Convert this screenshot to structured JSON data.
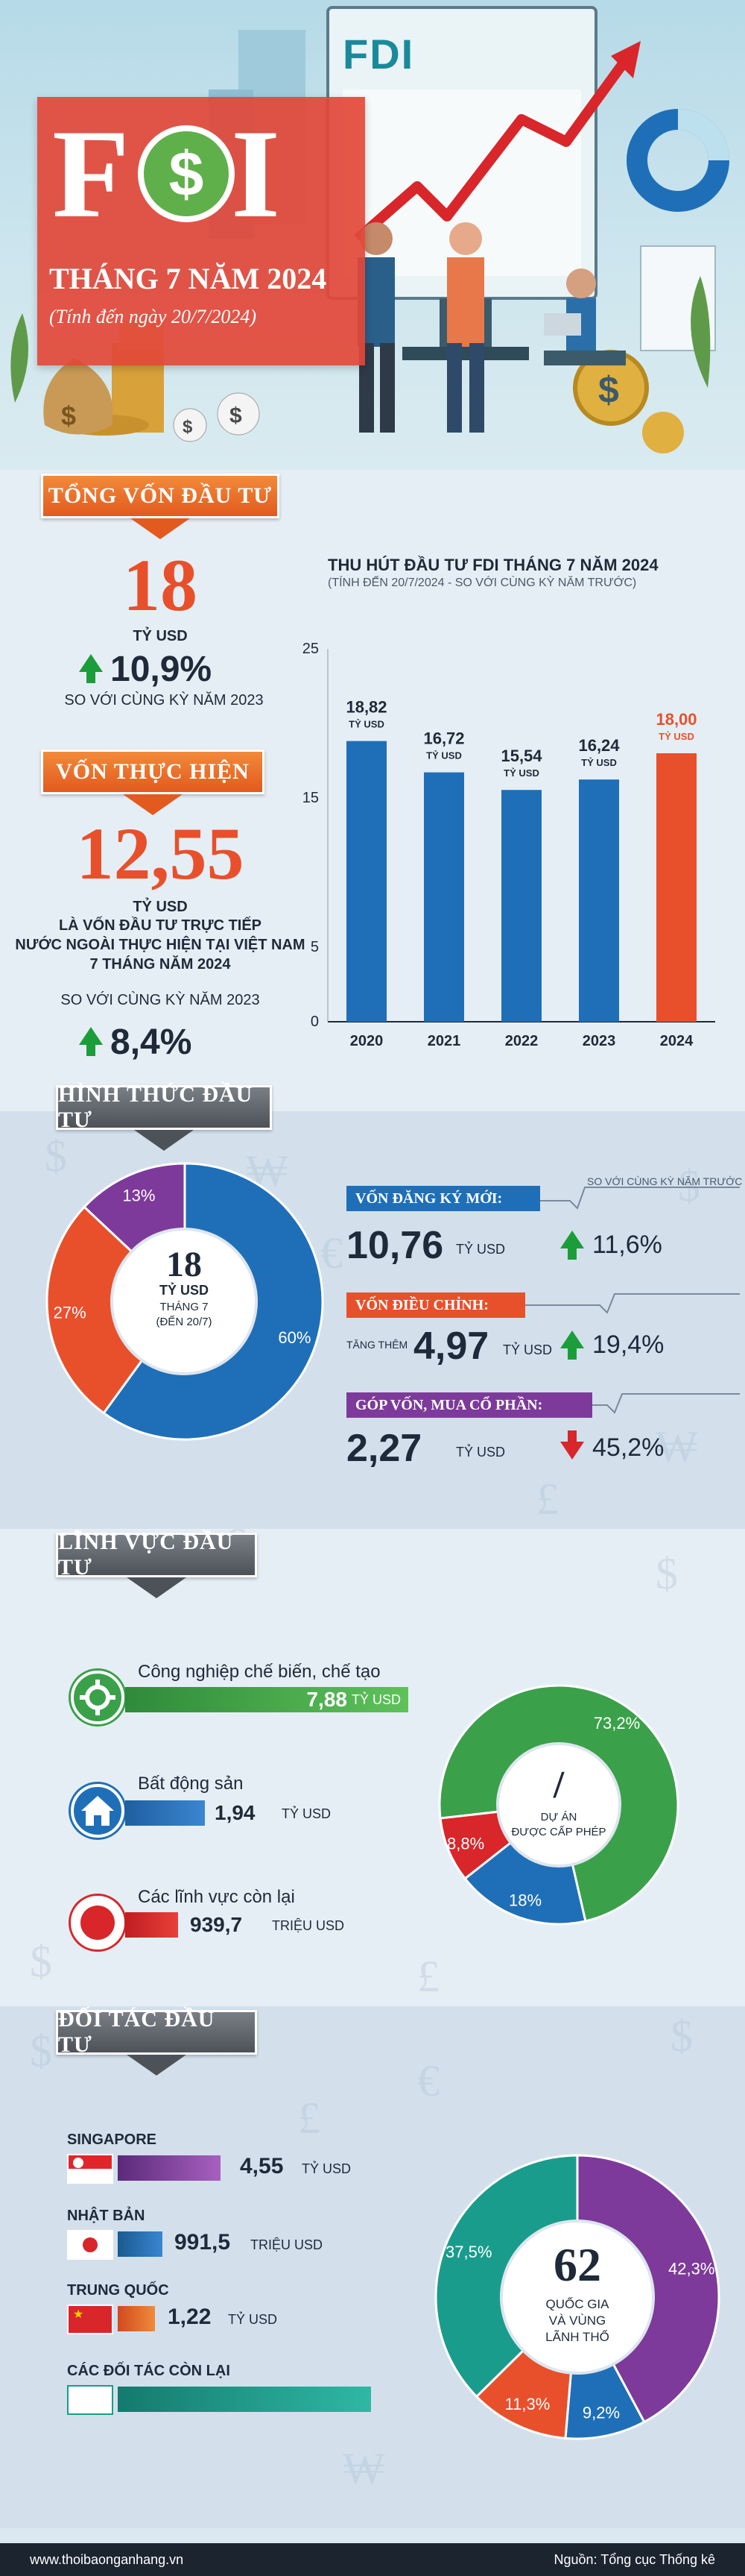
{
  "header": {
    "screen_label": "FDI",
    "logo_word": "FDI",
    "subtitle": "THÁNG 7 NĂM 2024",
    "date_note": "(Tính đến ngày 20/7/2024)"
  },
  "total_capital": {
    "banner": "TỔNG VỐN ĐẦU TƯ",
    "value": "18",
    "unit": "TỶ USD",
    "growth": "10,9%",
    "compare": "SO VỚI CÙNG KỲ NĂM 2023"
  },
  "disbursed": {
    "banner": "VỐN THỰC HIỆN",
    "value": "12,55",
    "unit": "TỶ USD",
    "desc_1": "LÀ VỐN ĐẦU TƯ TRỰC TIẾP",
    "desc_2": "NƯỚC NGOÀI THỰC HIỆN TẠI VIỆT NAM",
    "desc_3": "7 THÁNG NĂM 2024",
    "compare": "SO VỚI CÙNG KỲ NĂM 2023",
    "growth": "8,4%"
  },
  "chart_data": [
    {
      "type": "bar",
      "title": "THU HÚT ĐẦU TƯ FDI THÁNG 7 NĂM 2024",
      "subtitle": "(TÍNH ĐẾN 20/7/2024 - SO VỚI CÙNG KỲ NĂM TRƯỚC)",
      "categories": [
        "2020",
        "2021",
        "2022",
        "2023",
        "2024"
      ],
      "values": [
        18.82,
        16.72,
        15.54,
        16.24,
        18.0
      ],
      "value_labels": [
        "18,82",
        "16,72",
        "15,54",
        "16,24",
        "18,00"
      ],
      "unit_label": "TỶ USD",
      "yticks": [
        "0",
        "5",
        "15",
        "25"
      ],
      "ytick_values": [
        0,
        5,
        15,
        25
      ],
      "ylim": [
        0,
        25
      ],
      "colors": [
        "#1f6fb8",
        "#1f6fb8",
        "#1f6fb8",
        "#1f6fb8",
        "#e8502b"
      ]
    },
    {
      "type": "pie",
      "title": "HÌNH THỨC ĐẦU TƯ",
      "center_value": "18",
      "center_unit": "TỶ USD",
      "center_note_1": "THÁNG 7",
      "center_note_2": "(ĐẾN 20/7)",
      "values": [
        60,
        27,
        13
      ],
      "labels": [
        "60%",
        "27%",
        "13%"
      ],
      "colors": [
        "#1f6fb8",
        "#e8502b",
        "#7d3a9a"
      ]
    },
    {
      "type": "pie",
      "title": "LĨNH VỰC ĐẦU TƯ",
      "center_value": "/",
      "center_note_1": "DỰ ÁN",
      "center_note_2": "ĐƯỢC CẤP PHÉP",
      "values": [
        73.2,
        18,
        8.8
      ],
      "labels": [
        "73,2%",
        "18%",
        "8,8%"
      ],
      "colors": [
        "#3aa14a",
        "#1f6fb8",
        "#d8262a"
      ]
    },
    {
      "type": "pie",
      "title": "ĐỐI TÁC ĐẦU TƯ",
      "center_value": "62",
      "center_note_1": "QUỐC GIA",
      "center_note_2": "VÀ VÙNG",
      "center_note_3": "LÃNH THỔ",
      "values": [
        42.3,
        9.2,
        11.3,
        37.5
      ],
      "labels": [
        "42,3%",
        "9,2%",
        "11,3%",
        "37,5%"
      ],
      "colors": [
        "#7d3a9a",
        "#1f6fb8",
        "#e8502b",
        "#1a9c8c"
      ]
    }
  ],
  "forms": {
    "banner": "HÌNH THỨC ĐẦU TƯ",
    "compare_header": "SO VỚI CÙNG KỲ NĂM TRƯỚC",
    "new_reg": {
      "label": "VỐN ĐĂNG KÝ MỚI:",
      "value": "10,76",
      "unit": "TỶ USD",
      "growth": "11,6%"
    },
    "adjusted": {
      "label": "VỐN ĐIỀU CHỈNH:",
      "prefix": "TĂNG THÊM",
      "value": "4,97",
      "unit": "TỶ USD",
      "growth": "19,4%"
    },
    "shares": {
      "label": "GÓP VỐN, MUA CỔ PHẦN:",
      "value": "2,27",
      "unit": "TỶ USD",
      "growth": "45,2%"
    }
  },
  "sectors": {
    "banner": "LĨNH VỰC ĐẦU TƯ",
    "manufacturing": {
      "name": "Công nghiệp chế biến, chế tạo",
      "value": "7,88",
      "unit": "TỶ USD",
      "share": 0.79
    },
    "real_estate": {
      "name": "Bất động sản",
      "value": "1,94",
      "unit": "TỶ USD",
      "share": 0.19
    },
    "others": {
      "name": "Các lĩnh vực còn lại",
      "value": "939,7",
      "unit": "TRIỆU USD",
      "share": 0.09
    }
  },
  "partners": {
    "banner": "ĐỐI TÁC ĐẦU TƯ",
    "singapore": {
      "name": "SINGAPORE",
      "value": "4,55",
      "unit": "TỶ USD"
    },
    "japan": {
      "name": "NHẬT BẢN",
      "value": "991,5",
      "unit": "TRIỆU USD"
    },
    "china": {
      "name": "TRUNG QUỐC",
      "value": "1,22",
      "unit": "TỶ USD"
    },
    "others": {
      "name": "CÁC ĐỐI TÁC CÒN LẠI"
    }
  },
  "footer": {
    "site": "www.thoibaonganhang.vn",
    "source": "Nguồn: Tổng cục Thống kê"
  }
}
